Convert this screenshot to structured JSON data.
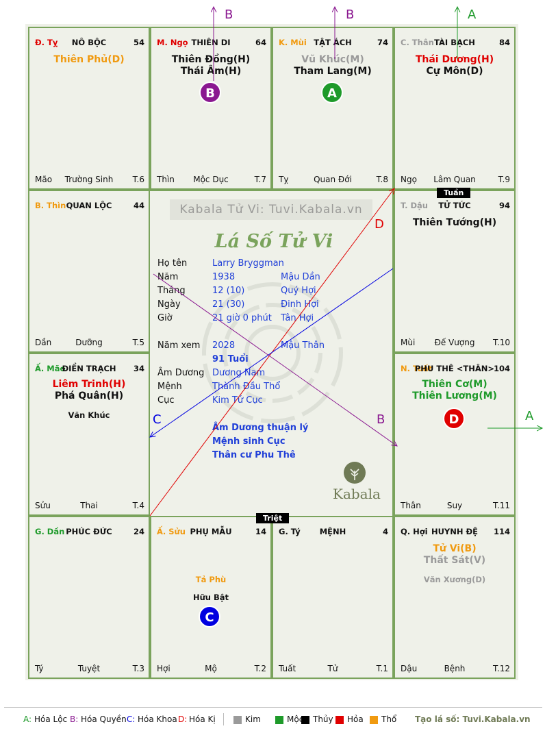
{
  "palaces": [
    {
      "id": "noboc",
      "stem": "Đ. Tỵ",
      "stem_color": "#e00000",
      "name": "NÔ BỘC",
      "num": "54",
      "main": [
        {
          "text": "Thiên Phủ(D)",
          "color": "#f09a10"
        }
      ],
      "minor": [],
      "bl": "Mão",
      "bm": "Trường Sinh",
      "br": "T.6"
    },
    {
      "id": "thiendi",
      "stem": "M. Ngọ",
      "stem_color": "#e00000",
      "name": "THIÊN DI",
      "num": "64",
      "main": [
        {
          "text": "Thiên Đồng(H)",
          "color": "#111111"
        },
        {
          "text": "Thái Âm(H)",
          "color": "#111111"
        }
      ],
      "minor": [],
      "bl": "Thìn",
      "bm": "Mộc Dục",
      "br": "T.7"
    },
    {
      "id": "tatach",
      "stem": "K. Mùi",
      "stem_color": "#f09a10",
      "name": "TẬT ÁCH",
      "num": "74",
      "main": [
        {
          "text": "Vũ Khúc(M)",
          "color": "#9a9a9a"
        },
        {
          "text": "Tham Lang(M)",
          "color": "#111111"
        }
      ],
      "minor": [],
      "bl": "Tỵ",
      "bm": "Quan Đới",
      "br": "T.8"
    },
    {
      "id": "taibach",
      "stem": "C. Thân",
      "stem_color": "#9a9a9a",
      "name": "TÀI BẠCH",
      "num": "84",
      "main": [
        {
          "text": "Thái Dương(H)",
          "color": "#e00000"
        },
        {
          "text": "Cự Môn(D)",
          "color": "#111111"
        }
      ],
      "minor": [],
      "bl": "Ngọ",
      "bm": "Lâm Quan",
      "br": "T.9"
    },
    {
      "id": "tutuc",
      "stem": "T. Dậu",
      "stem_color": "#9a9a9a",
      "name": "TỬ TỨC",
      "num": "94",
      "main": [
        {
          "text": "Thiên Tướng(H)",
          "color": "#111111"
        }
      ],
      "minor": [],
      "bl": "Mùi",
      "bm": "Đế Vượng",
      "br": "T.10"
    },
    {
      "id": "phuthe",
      "stem": "N. Tuất",
      "stem_color": "#f09a10",
      "name": "PHU THÊ <THÂN>",
      "num": "104",
      "main": [
        {
          "text": "Thiên Cơ(M)",
          "color": "#1e9a2a"
        },
        {
          "text": "Thiên Lương(M)",
          "color": "#1e9a2a"
        }
      ],
      "minor": [],
      "bl": "Thân",
      "bm": "Suy",
      "br": "T.11"
    },
    {
      "id": "huynhde",
      "stem": "Q. Hợi",
      "stem_color": "#111111",
      "name": "HUYNH ĐỆ",
      "num": "114",
      "main": [
        {
          "text": "Tử Vi(B)",
          "color": "#f09a10"
        },
        {
          "text": "Thất Sát(V)",
          "color": "#9a9a9a"
        }
      ],
      "minor": [
        {
          "text": "Văn Xương(D)",
          "color": "#9a9a9a"
        }
      ],
      "bl": "Dậu",
      "bm": "Bệnh",
      "br": "T.12"
    },
    {
      "id": "menh",
      "stem": "G. Tý",
      "stem_color": "#111111",
      "name": "MỆNH",
      "num": "4",
      "main": [],
      "minor": [],
      "bl": "Tuất",
      "bm": "Tử",
      "br": "T.1"
    },
    {
      "id": "phumau",
      "stem": "Ấ. Sửu",
      "stem_color": "#f09a10",
      "name": "PHỤ MẪU",
      "num": "14",
      "main": [],
      "minor": [
        {
          "text": "Tả Phù",
          "color": "#f09a10"
        },
        {
          "text": "Hữu Bật",
          "color": "#111111"
        }
      ],
      "bl": "Hợi",
      "bm": "Mộ",
      "br": "T.2"
    },
    {
      "id": "phucduc",
      "stem": "G. Dần",
      "stem_color": "#1e9a2a",
      "name": "PHÚC ĐỨC",
      "num": "24",
      "main": [],
      "minor": [],
      "bl": "Tý",
      "bm": "Tuyệt",
      "br": "T.3"
    },
    {
      "id": "dientrach",
      "stem": "Ấ. Mão",
      "stem_color": "#1e9a2a",
      "name": "ĐIỀN TRẠCH",
      "num": "34",
      "main": [
        {
          "text": "Liêm Trinh(H)",
          "color": "#e00000"
        },
        {
          "text": "Phá Quân(H)",
          "color": "#111111"
        }
      ],
      "minor": [
        {
          "text": "Văn Khúc",
          "color": "#111111"
        }
      ],
      "bl": "Sửu",
      "bm": "Thai",
      "br": "T.4"
    },
    {
      "id": "quanloc",
      "stem": "B. Thìn",
      "stem_color": "#f09a10",
      "name": "QUAN LỘC",
      "num": "44",
      "main": [],
      "minor": [],
      "bl": "Dần",
      "bm": "Dưỡng",
      "br": "T.5"
    }
  ],
  "badges": [
    {
      "letter": "B",
      "color": "#8a1890",
      "palace": "thiendi"
    },
    {
      "letter": "A",
      "color": "#1e9a2a",
      "palace": "tatach"
    },
    {
      "letter": "D",
      "color": "#e00000",
      "palace": "phuthe"
    },
    {
      "letter": "C",
      "color": "#0000e0",
      "palace": "phumau"
    }
  ],
  "arrow_labels": [
    {
      "text": "B",
      "color": "#8a1890"
    },
    {
      "text": "B",
      "color": "#8a1890"
    },
    {
      "text": "A",
      "color": "#1e9a2a"
    },
    {
      "text": "A",
      "color": "#1e9a2a"
    },
    {
      "text": "D",
      "color": "#e00000"
    },
    {
      "text": "C",
      "color": "#0000e0"
    },
    {
      "text": "B",
      "color": "#8a1890"
    }
  ],
  "tags": {
    "tuan": "Tuần",
    "triet": "Triệt"
  },
  "center": {
    "watermark": "Kabala Tử Vi: Tuvi.Kabala.vn",
    "title": "Lá Số Tử Vi",
    "rows": [
      {
        "label": "Họ tên",
        "v1": "Larry Bryggman",
        "v2": ""
      },
      {
        "label": "Năm",
        "v1": "1938",
        "v2": "Mậu Dần"
      },
      {
        "label": "Tháng",
        "v1": "12  (10)",
        "v2": "Quý Hợi"
      },
      {
        "label": "Ngày",
        "v1": "21  (30)",
        "v2": "Đinh Hợi"
      },
      {
        "label": "Giờ",
        "v1": "21 giờ 0 phút",
        "v2": "Tân Hợi"
      },
      {
        "label": "Năm xem",
        "v1": "2028",
        "v2": "Mậu Thân"
      },
      {
        "label": "",
        "v1": "91 Tuổi",
        "v2": ""
      },
      {
        "label": "Âm Dương",
        "v1": "Dương Nam",
        "v2": ""
      },
      {
        "label": "Mệnh",
        "v1": "Thành Đầu Thổ",
        "v2": ""
      },
      {
        "label": "Cục",
        "v1": "Kim Tứ Cục",
        "v2": ""
      }
    ],
    "notes": [
      "Âm Dương thuận lý",
      "Mệnh sinh Cục",
      "Thân cư Phu Thê"
    ],
    "logo_text": "Kabala"
  },
  "legend": {
    "hoa": [
      {
        "key": "A:",
        "text": "Hóa Lộc",
        "color": "#1e9a2a"
      },
      {
        "key": "B:",
        "text": "Hóa Quyền",
        "color": "#8a1890"
      },
      {
        "key": "C:",
        "text": "Hóa Khoa",
        "color": "#0000e0"
      },
      {
        "key": "D:",
        "text": "Hóa Kị",
        "color": "#e00000"
      }
    ],
    "elements": [
      {
        "text": "Kim",
        "color": "#9a9a9a"
      },
      {
        "text": "Mộc",
        "color": "#1e9a2a"
      },
      {
        "text": "Thủy",
        "color": "#000000"
      },
      {
        "text": "Hỏa",
        "color": "#e00000"
      },
      {
        "text": "Thổ",
        "color": "#f09a10"
      }
    ],
    "credit": "Tạo lá số: Tuvi.Kabala.vn"
  }
}
